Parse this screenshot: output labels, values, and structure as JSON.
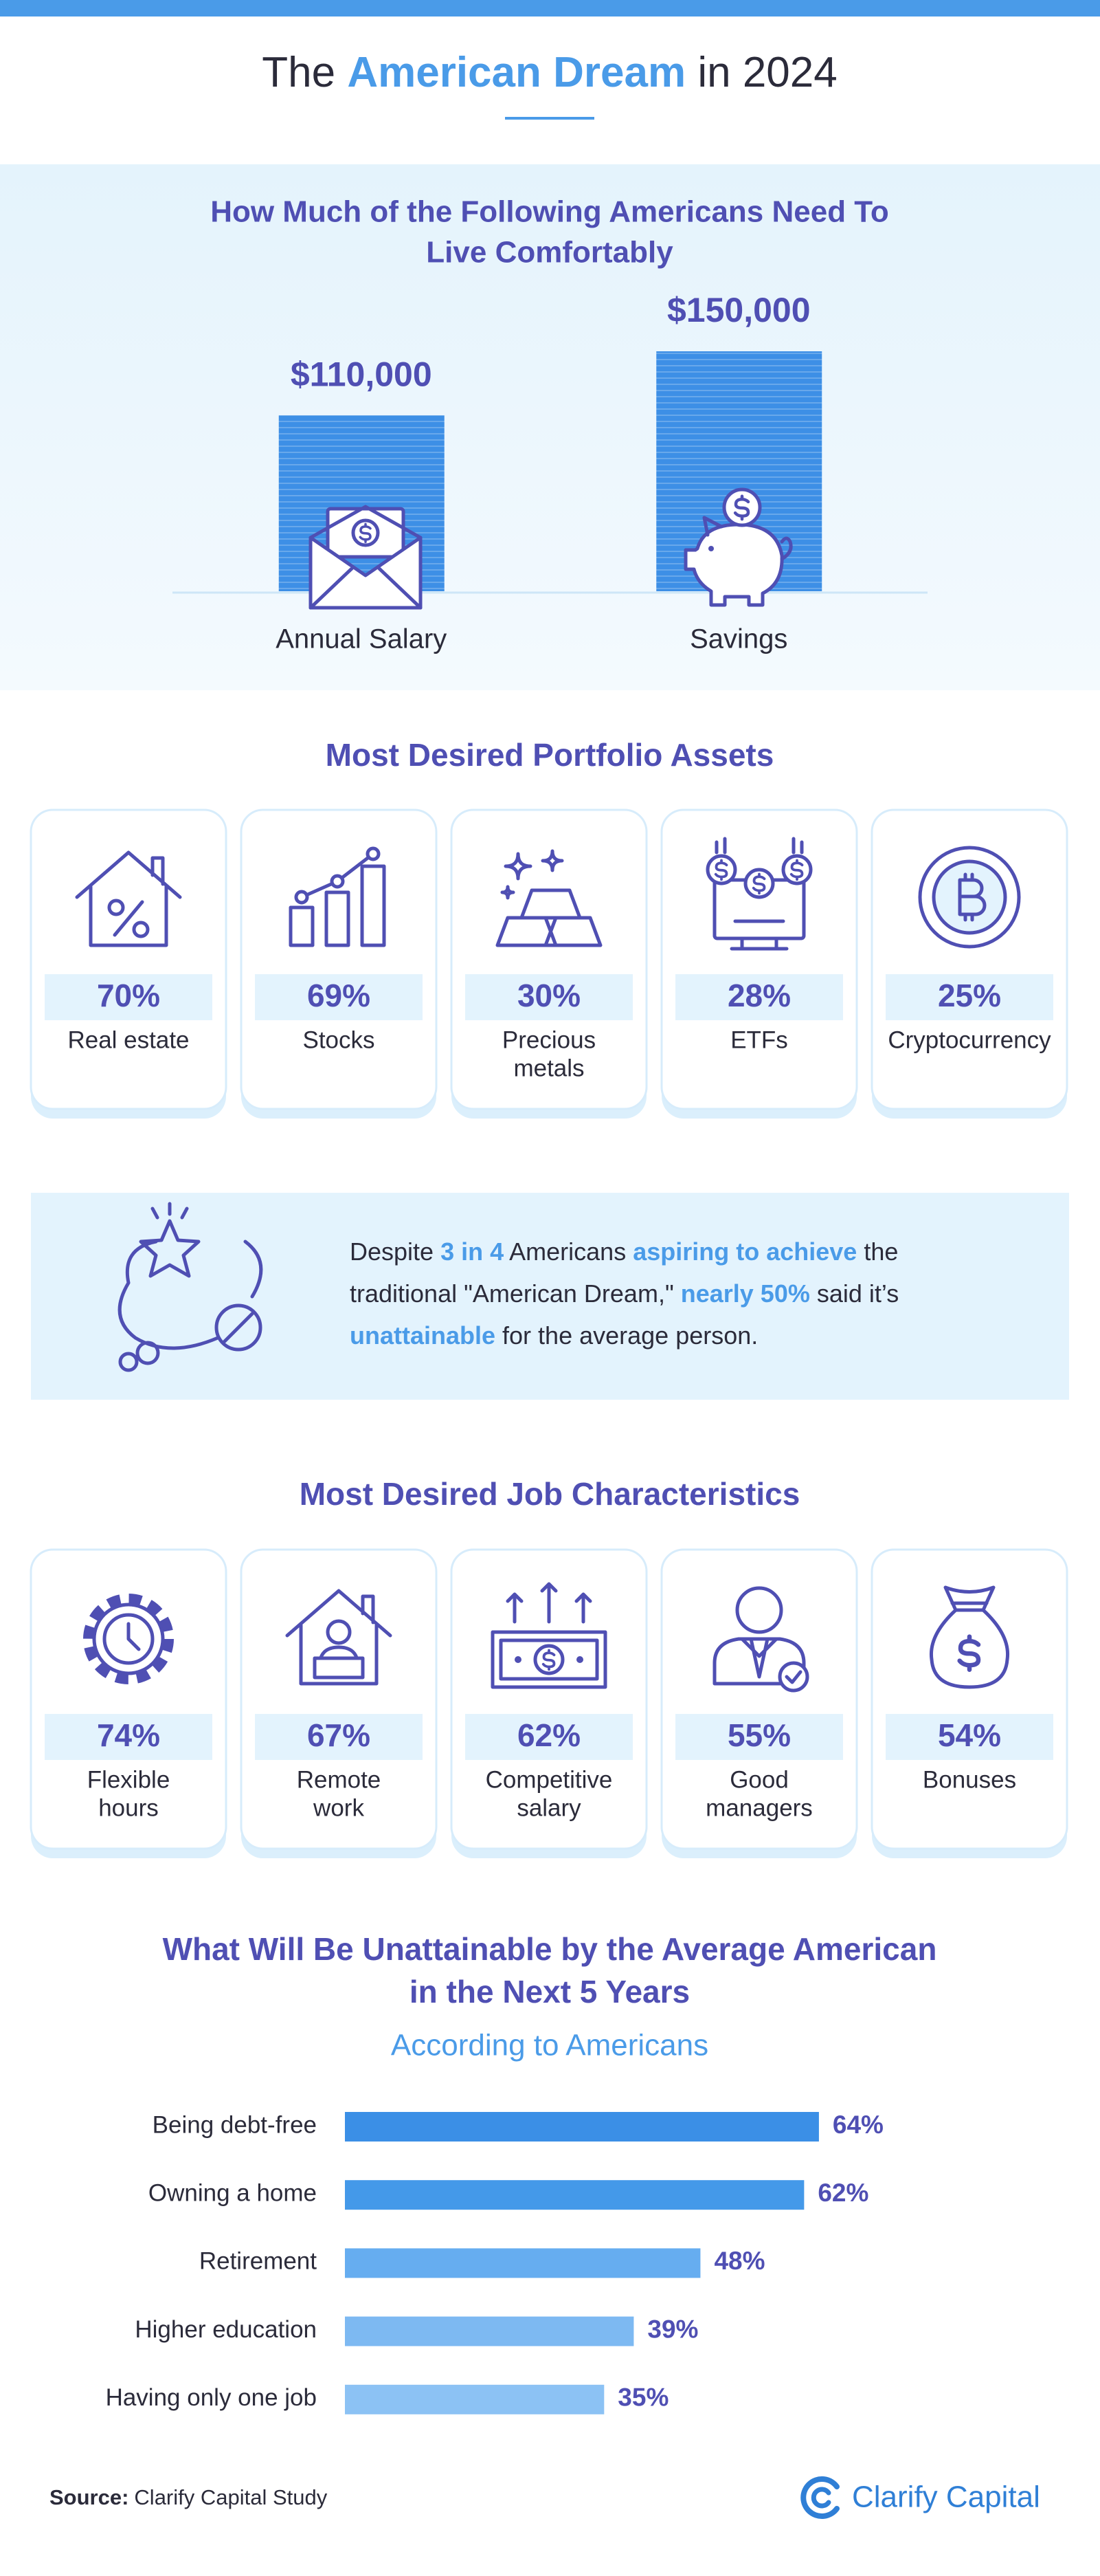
{
  "header": {
    "title": [
      {
        "text": "The "
      },
      {
        "text": "American Dream",
        "highlight": true
      },
      {
        "text": " in 2024"
      }
    ]
  },
  "chart_data": [
    {
      "type": "bar",
      "title": [
        "How Much of the Following Americans Need To",
        "Live Comfortably"
      ],
      "categories": [
        "Annual Salary",
        "Savings"
      ],
      "values": [
        110000,
        150000
      ],
      "value_labels": [
        "$110,000",
        "$150,000"
      ],
      "color": "#3d8fe6"
    },
    {
      "type": "hbar",
      "title": [
        "What Will Be Unattainable by the Average American",
        "in the Next 5 Years"
      ],
      "subtitle": "According to Americans",
      "categories": [
        "Being debt-free",
        "Owning a home",
        "Retirement",
        "Higher education",
        "Having only one job"
      ],
      "values": [
        64,
        62,
        48,
        39,
        35
      ],
      "value_labels": [
        "64%",
        "62%",
        "48%",
        "39%",
        "35%"
      ],
      "colors": [
        "#3b8fe6",
        "#4499e9",
        "#66adf0",
        "#7db9f2",
        "#8cc2f4"
      ]
    }
  ],
  "portfolio": {
    "title": "Most Desired Portfolio Assets",
    "items": [
      {
        "value": "70%",
        "label": [
          "Real estate"
        ]
      },
      {
        "value": "69%",
        "label": [
          "Stocks"
        ]
      },
      {
        "value": "30%",
        "label": [
          "Precious",
          "metals"
        ]
      },
      {
        "value": "28%",
        "label": [
          "ETFs"
        ]
      },
      {
        "value": "25%",
        "label": [
          "Cryptocurrency"
        ]
      }
    ]
  },
  "callout": {
    "lines": [
      [
        {
          "text": "Despite "
        },
        {
          "text": "3 in 4",
          "highlight": true
        },
        {
          "text": " Americans "
        },
        {
          "text": "aspiring to achieve",
          "highlight": true
        },
        {
          "text": " the"
        }
      ],
      [
        {
          "text": "traditional \"American Dream,\" "
        },
        {
          "text": "nearly 50%",
          "highlight": true
        },
        {
          "text": " said it’s"
        }
      ],
      [
        {
          "text": "unattainable",
          "highlight": true
        },
        {
          "text": " for the average person."
        }
      ]
    ]
  },
  "jobs": {
    "title": "Most Desired Job Characteristics",
    "items": [
      {
        "value": "74%",
        "label": [
          "Flexible",
          "hours"
        ]
      },
      {
        "value": "67%",
        "label": [
          "Remote",
          "work"
        ]
      },
      {
        "value": "62%",
        "label": [
          "Competitive",
          "salary"
        ]
      },
      {
        "value": "55%",
        "label": [
          "Good",
          "managers"
        ]
      },
      {
        "value": "54%",
        "label": [
          "Bonuses"
        ]
      }
    ]
  },
  "footer": {
    "source_label": "Source:",
    "source": "Clarify Capital Study",
    "brand": "Clarify Capital"
  }
}
